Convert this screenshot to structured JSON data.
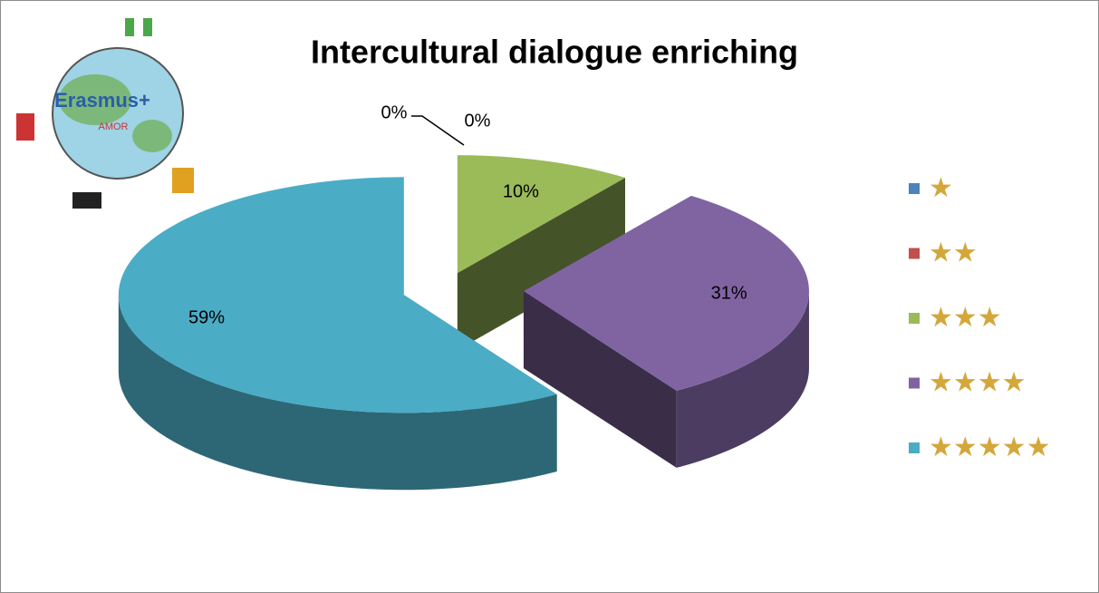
{
  "chart_data": {
    "type": "pie3d",
    "title": "Intercultural dialogue enriching",
    "logo": {
      "text": "Erasmus+",
      "subtitle": "AMOR"
    },
    "categories": [
      "★",
      "★★",
      "★★★",
      "★★★★",
      "★★★★★"
    ],
    "series": [
      {
        "values": [
          0,
          0,
          10,
          31,
          59
        ],
        "value_labels": [
          "0%",
          "0%",
          "10%",
          "31%",
          "59%"
        ],
        "colors": [
          "#4f81bd",
          "#c0504d",
          "#9bbb59",
          "#8064a2",
          "#4bacc6"
        ]
      }
    ],
    "legend": "right",
    "legend_text_color": "#d4a73a"
  }
}
